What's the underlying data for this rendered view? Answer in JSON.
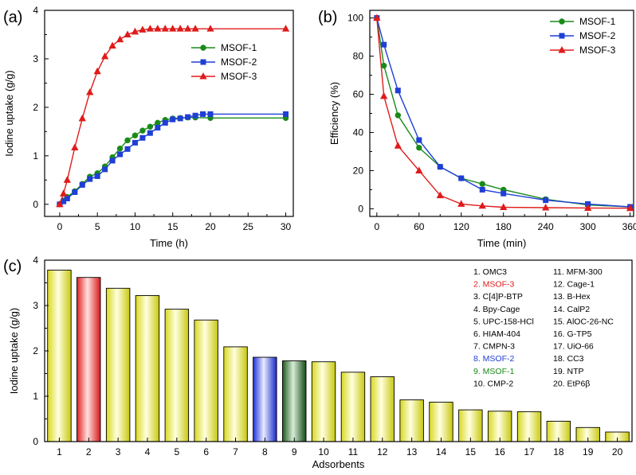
{
  "chart_data": [
    {
      "panel": "(a)",
      "type": "line",
      "xlabel": "Time (h)",
      "ylabel": "Iodine uptake (g/g)",
      "xlim": [
        -2,
        31
      ],
      "ylim": [
        -0.25,
        4
      ],
      "xticks": [
        0,
        5,
        10,
        15,
        20,
        25,
        30
      ],
      "yticks": [
        0,
        1,
        2,
        3,
        4
      ],
      "legend_position": "middle-right",
      "series": [
        {
          "name": "MSOF-1",
          "color": "#1a8a1a",
          "marker": "circle",
          "x": [
            0,
            0.5,
            1,
            2,
            3,
            4,
            5,
            6,
            7,
            8,
            9,
            10,
            11,
            12,
            13,
            14,
            15,
            16,
            17,
            18,
            20,
            30
          ],
          "y": [
            0,
            0.08,
            0.15,
            0.27,
            0.42,
            0.57,
            0.64,
            0.78,
            0.97,
            1.15,
            1.32,
            1.42,
            1.52,
            1.6,
            1.68,
            1.74,
            1.77,
            1.78,
            1.79,
            1.79,
            1.78,
            1.78
          ]
        },
        {
          "name": "MSOF-2",
          "color": "#1f3fd6",
          "marker": "square",
          "x": [
            0,
            0.5,
            1,
            2,
            3,
            4,
            5,
            6,
            7,
            8,
            9,
            10,
            11,
            12,
            13,
            14,
            15,
            16,
            17,
            18,
            19,
            20,
            30
          ],
          "y": [
            0,
            0.06,
            0.12,
            0.25,
            0.4,
            0.52,
            0.58,
            0.72,
            0.9,
            1.03,
            1.14,
            1.27,
            1.37,
            1.47,
            1.58,
            1.68,
            1.75,
            1.77,
            1.8,
            1.83,
            1.86,
            1.86,
            1.86
          ]
        },
        {
          "name": "MSOF-3",
          "color": "#e01b1b",
          "marker": "triangle",
          "x": [
            0,
            0.5,
            1,
            2,
            3,
            4,
            5,
            6,
            7,
            8,
            9,
            10,
            11,
            12,
            13,
            14,
            15,
            16,
            17,
            18,
            20,
            30
          ],
          "y": [
            0,
            0.22,
            0.5,
            1.17,
            1.77,
            2.31,
            2.74,
            3.05,
            3.27,
            3.4,
            3.5,
            3.56,
            3.6,
            3.62,
            3.62,
            3.62,
            3.62,
            3.62,
            3.62,
            3.62,
            3.62,
            3.62
          ]
        }
      ]
    },
    {
      "panel": "(b)",
      "type": "line",
      "xlabel": "Time (min)",
      "ylabel": "Efficiency (%)",
      "xlim": [
        -10,
        365
      ],
      "ylim": [
        -4,
        104
      ],
      "xticks": [
        0,
        60,
        120,
        180,
        240,
        300,
        360
      ],
      "yticks": [
        0,
        20,
        40,
        60,
        80,
        100
      ],
      "legend_position": "top-right",
      "series": [
        {
          "name": "MSOF-1",
          "color": "#1a8a1a",
          "marker": "circle",
          "x": [
            0,
            10,
            30,
            60,
            90,
            120,
            150,
            180,
            240,
            300,
            360
          ],
          "y": [
            100,
            75,
            49,
            32,
            22,
            16,
            13,
            10,
            5,
            2,
            1
          ]
        },
        {
          "name": "MSOF-2",
          "color": "#1f3fd6",
          "marker": "square",
          "x": [
            0,
            10,
            30,
            60,
            90,
            120,
            150,
            180,
            240,
            300,
            360
          ],
          "y": [
            100,
            86,
            62,
            36,
            22,
            16,
            10,
            8,
            4.5,
            2.5,
            1
          ]
        },
        {
          "name": "MSOF-3",
          "color": "#e01b1b",
          "marker": "triangle",
          "x": [
            0,
            10,
            30,
            60,
            90,
            120,
            150,
            180,
            240,
            300,
            360
          ],
          "y": [
            100,
            59,
            33,
            20,
            7,
            2.5,
            1.5,
            0.8,
            0.6,
            0.4,
            0.3
          ]
        }
      ]
    },
    {
      "panel": "(c)",
      "type": "bar",
      "xlabel": "Adsorbents",
      "ylabel": "Iodine uptake (g/g)",
      "ylim": [
        0,
        4
      ],
      "yticks": [
        0,
        1,
        2,
        3,
        4
      ],
      "categories": [
        "1",
        "2",
        "3",
        "4",
        "5",
        "6",
        "7",
        "8",
        "9",
        "10",
        "11",
        "12",
        "13",
        "14",
        "15",
        "16",
        "17",
        "18",
        "19",
        "20"
      ],
      "values": [
        3.78,
        3.62,
        3.38,
        3.22,
        2.92,
        2.68,
        2.09,
        1.86,
        1.78,
        1.76,
        1.53,
        1.43,
        0.92,
        0.87,
        0.7,
        0.67,
        0.66,
        0.45,
        0.31,
        0.21
      ],
      "bar_colors": [
        "yellow",
        "red",
        "yellow",
        "yellow",
        "yellow",
        "yellow",
        "yellow",
        "blue",
        "green",
        "yellow",
        "yellow",
        "yellow",
        "yellow",
        "yellow",
        "yellow",
        "yellow",
        "yellow",
        "yellow",
        "yellow",
        "yellow"
      ],
      "references": [
        {
          "label": "1. OMC3",
          "color": "#000000"
        },
        {
          "label": "2. MSOF-3",
          "color": "#e01b1b"
        },
        {
          "label": "3. C[4]P-BTP",
          "color": "#000000"
        },
        {
          "label": "4. Bpy-Cage",
          "color": "#000000"
        },
        {
          "label": "5. UPC-158-HCl",
          "color": "#000000"
        },
        {
          "label": "6. HIAM-404",
          "color": "#000000"
        },
        {
          "label": "7. CMPN-3",
          "color": "#000000"
        },
        {
          "label": "8. MSOF-2",
          "color": "#1f3fd6"
        },
        {
          "label": "9. MSOF-1",
          "color": "#1a8a1a"
        },
        {
          "label": "10. CMP-2",
          "color": "#000000"
        },
        {
          "label": "11. MFM-300",
          "color": "#000000"
        },
        {
          "label": "12. Cage-1",
          "color": "#000000"
        },
        {
          "label": "13. B-Hex",
          "color": "#000000"
        },
        {
          "label": "14. CalP2",
          "color": "#000000"
        },
        {
          "label": "15. AlOC-26-NC",
          "color": "#000000"
        },
        {
          "label": "16. G-TP5",
          "color": "#000000"
        },
        {
          "label": "17. UiO-66",
          "color": "#000000"
        },
        {
          "label": "18. CC3",
          "color": "#000000"
        },
        {
          "label": "19. NTP",
          "color": "#000000"
        },
        {
          "label": "20. EtP6β",
          "color": "#000000"
        }
      ]
    }
  ]
}
